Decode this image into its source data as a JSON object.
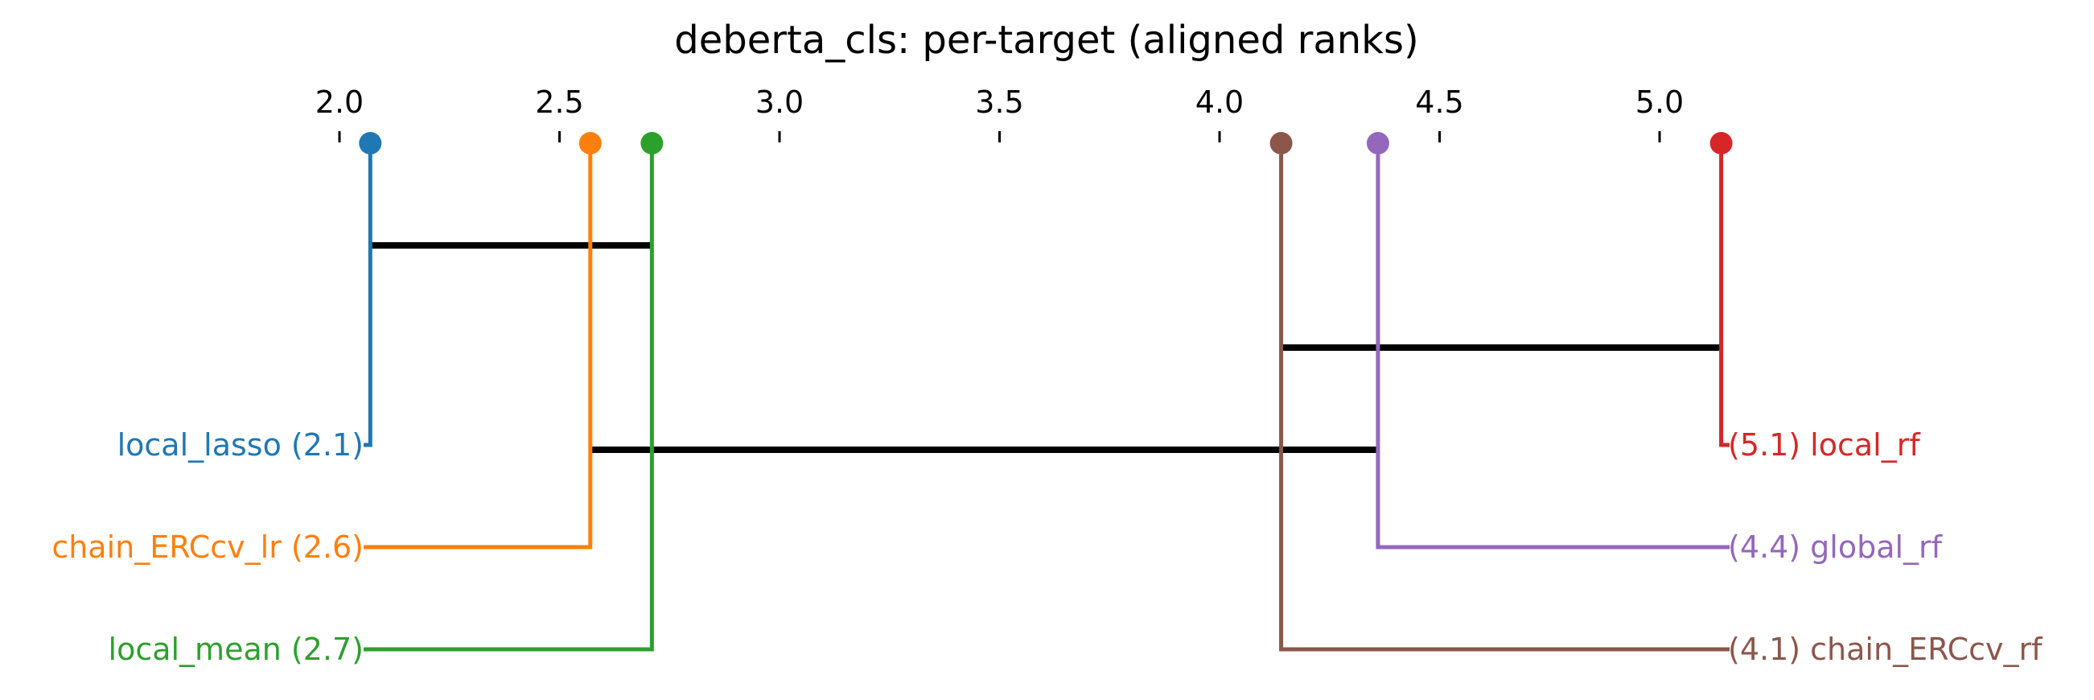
{
  "chart_data": {
    "type": "critical-difference",
    "title": "deberta_cls: per-target (aligned ranks)",
    "xlim": [
      2.0,
      5.0
    ],
    "ticks": [
      2.0,
      2.5,
      3.0,
      3.5,
      4.0,
      4.5,
      5.0
    ],
    "tick_labels": [
      "2.0",
      "2.5",
      "3.0",
      "3.5",
      "4.0",
      "4.5",
      "5.0"
    ],
    "grid": false,
    "legend": "none",
    "methods": [
      {
        "name": "local_lasso",
        "rank": 2.07,
        "rank_label": "2.1",
        "side": "left",
        "color": "#1f77b4",
        "label": "local_lasso (2.1)"
      },
      {
        "name": "chain_ERCcv_lr",
        "rank": 2.57,
        "rank_label": "2.6",
        "side": "left",
        "color": "#ff7f0e",
        "label": "chain_ERCcv_lr (2.6)"
      },
      {
        "name": "local_mean",
        "rank": 2.71,
        "rank_label": "2.7",
        "side": "left",
        "color": "#2ca02c",
        "label": "local_mean (2.7)"
      },
      {
        "name": "local_rf",
        "rank": 5.14,
        "rank_label": "5.1",
        "side": "right",
        "color": "#d62728",
        "label": "(5.1) local_rf"
      },
      {
        "name": "global_rf",
        "rank": 4.36,
        "rank_label": "4.4",
        "side": "right",
        "color": "#9467bd",
        "label": "(4.4) global_rf"
      },
      {
        "name": "chain_ERCcv_rf",
        "rank": 4.14,
        "rank_label": "4.1",
        "side": "right",
        "color": "#8c564b",
        "label": "(4.1) chain_ERCcv_rf"
      }
    ],
    "cliques": [
      {
        "from": 2.07,
        "to": 2.71
      },
      {
        "from": 4.14,
        "to": 5.14
      },
      {
        "from": 2.57,
        "to": 4.36
      }
    ],
    "clique_color": "#000000"
  }
}
